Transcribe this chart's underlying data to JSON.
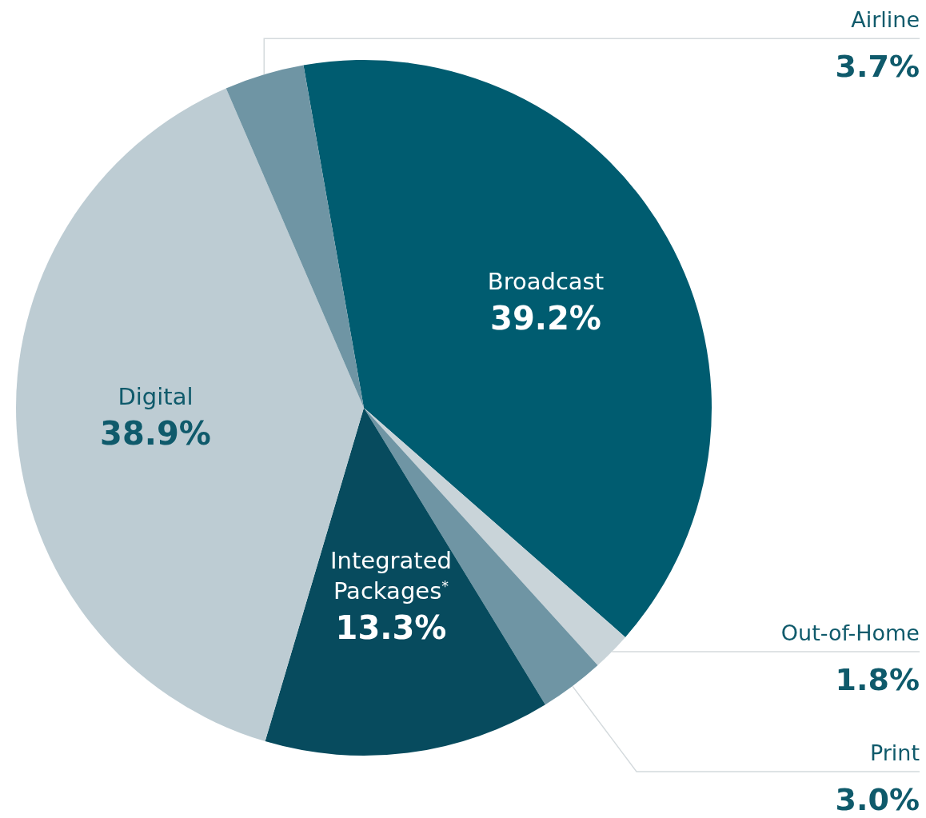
{
  "chart_data": {
    "type": "pie",
    "categories": [
      "Broadcast",
      "Out-of-Home",
      "Print",
      "Integrated Packages$^{*}$",
      "Digital",
      "Airline"
    ],
    "values": [
      39.2,
      1.8,
      3.0,
      13.3,
      38.9,
      3.7
    ],
    "value_labels": [
      "39.2%",
      "1.8%",
      "3.0%",
      "13.3%",
      "38.9%",
      "3.7%"
    ],
    "colors": [
      "#005c70",
      "#c9d4d9",
      "#6f95a4",
      "#074b5e",
      "#bdccd3",
      "#6f95a4"
    ],
    "legend": false
  }
}
